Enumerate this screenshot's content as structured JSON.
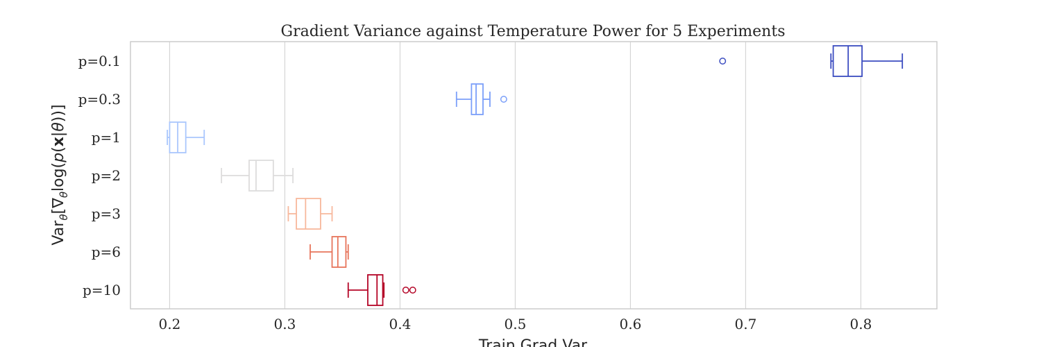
{
  "chart_data": {
    "type": "boxplot",
    "orientation": "horizontal",
    "title": "Gradient Variance against Temperature Power for 5 Experiments",
    "xlabel": "Train Grad Var",
    "ylabel": "Var_θ[∇_θ log(p(x|θ))]",
    "xlim": [
      0.166,
      0.866
    ],
    "xticks": [
      0.2,
      0.3,
      0.4,
      0.5,
      0.6,
      0.7,
      0.8
    ],
    "xtick_labels": [
      "0.2",
      "0.3",
      "0.4",
      "0.5",
      "0.6",
      "0.7",
      "0.8"
    ],
    "grid": "vertical",
    "categories": [
      "p=0.1",
      "p=0.3",
      "p=1",
      "p=2",
      "p=3",
      "p=6",
      "p=10"
    ],
    "colors": [
      "#3b4cc0",
      "#7b9ff9",
      "#aac7fd",
      "#dddcdc",
      "#f7b89c",
      "#e7745b",
      "#b40426"
    ],
    "boxes": [
      {
        "label": "p=0.1",
        "whisker_low": 0.774,
        "q1": 0.776,
        "median": 0.789,
        "q3": 0.801,
        "whisker_high": 0.836,
        "outliers": [
          0.68
        ]
      },
      {
        "label": "p=0.3",
        "whisker_low": 0.449,
        "q1": 0.462,
        "median": 0.466,
        "q3": 0.472,
        "whisker_high": 0.478,
        "outliers": [
          0.49
        ]
      },
      {
        "label": "p=1",
        "whisker_low": 0.198,
        "q1": 0.2,
        "median": 0.207,
        "q3": 0.214,
        "whisker_high": 0.23,
        "outliers": []
      },
      {
        "label": "p=2",
        "whisker_low": 0.245,
        "q1": 0.269,
        "median": 0.275,
        "q3": 0.29,
        "whisker_high": 0.307,
        "outliers": []
      },
      {
        "label": "p=3",
        "whisker_low": 0.303,
        "q1": 0.31,
        "median": 0.318,
        "q3": 0.331,
        "whisker_high": 0.341,
        "outliers": []
      },
      {
        "label": "p=6",
        "whisker_low": 0.322,
        "q1": 0.341,
        "median": 0.346,
        "q3": 0.353,
        "whisker_high": 0.355,
        "outliers": []
      },
      {
        "label": "p=10",
        "whisker_low": 0.355,
        "q1": 0.372,
        "median": 0.38,
        "q3": 0.385,
        "whisker_high": 0.386,
        "outliers": [
          0.405,
          0.411
        ]
      }
    ]
  }
}
